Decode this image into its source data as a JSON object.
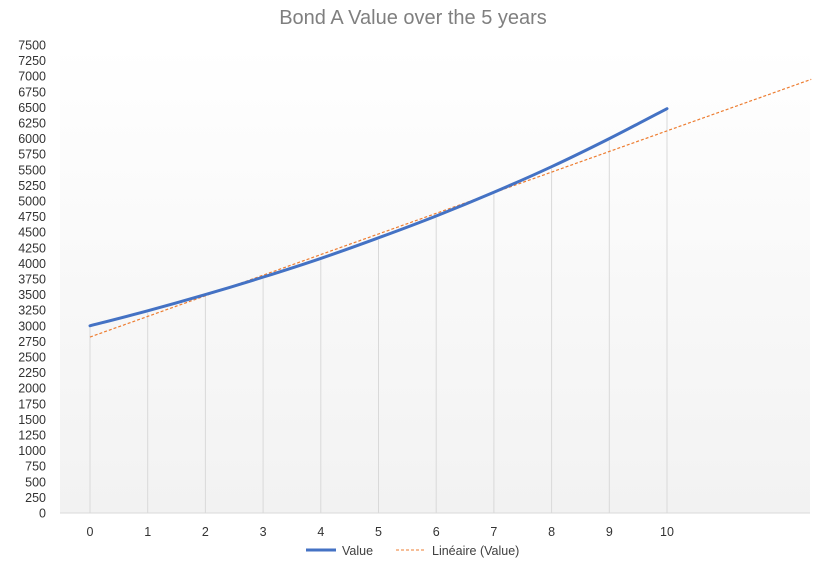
{
  "chart_data": {
    "type": "line",
    "title": "Bond A Value over the 5 years",
    "xlabel": "",
    "ylabel": "",
    "x": [
      0,
      1,
      2,
      3,
      4,
      5,
      6,
      7,
      8,
      9,
      10
    ],
    "categories": [
      "0",
      "1",
      "2",
      "3",
      "4",
      "5",
      "6",
      "7",
      "8",
      "9",
      "10"
    ],
    "xlim": [
      0,
      12.5
    ],
    "ylim": [
      0,
      7500
    ],
    "ytick_step": 250,
    "grid": "vertical",
    "legend_position": "bottom",
    "series": [
      {
        "name": "Value",
        "values": [
          3000,
          3240,
          3500,
          3780,
          4080,
          4410,
          4760,
          5140,
          5550,
          6000,
          6480
        ],
        "color": "#4472c4",
        "style": "solid"
      }
    ],
    "trendline": {
      "name": "Linéaire (Value)",
      "type": "linear",
      "color": "#ed7d31",
      "style": "dashed",
      "start": [
        0,
        2820
      ],
      "end": [
        12.5,
        6950
      ]
    },
    "background_gradient": [
      "#ffffff",
      "#f2f2f2"
    ]
  }
}
